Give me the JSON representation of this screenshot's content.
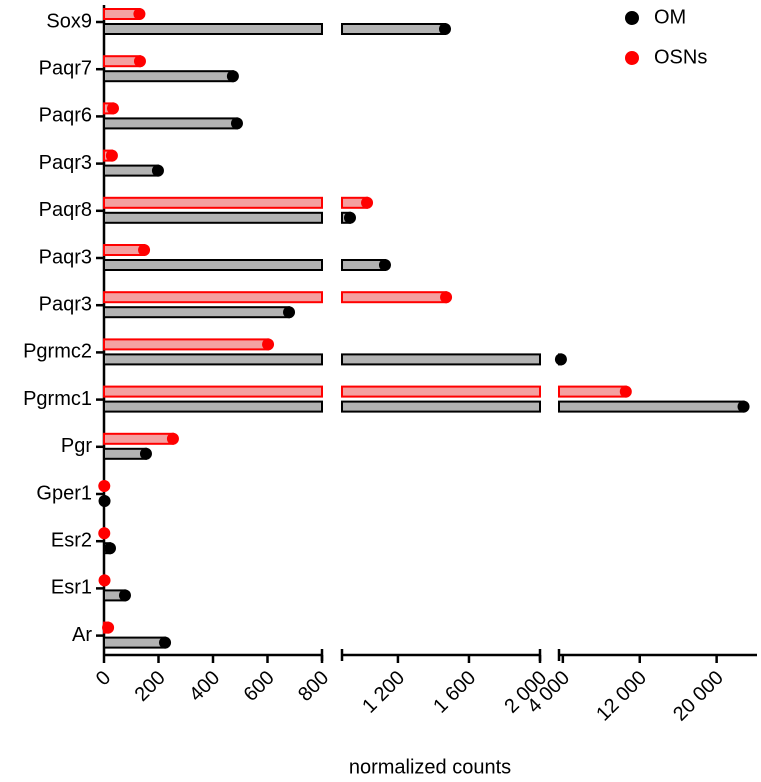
{
  "chart_data": {
    "type": "broken-axis-hbar",
    "x_label": "normalized counts",
    "categories": [
      "Sox9",
      "Paqr7",
      "Paqr6",
      "Paqr3",
      "Paqr8",
      "Paqr3",
      "Paqr3",
      "Pgrmc2",
      "Pgrmc1",
      "Pgr",
      "Gper1",
      "Esr2",
      "Esr1",
      "Ar"
    ],
    "series": [
      {
        "name": "OM",
        "color": "#000000",
        "bar_color": "#b3b3b3",
        "values": [
          1465,
          473,
          488,
          198,
          930,
          1127,
          679,
          3800,
          22800,
          154,
          2,
          22,
          77,
          224
        ]
      },
      {
        "name": "OSNs",
        "color": "#ff0000",
        "bar_color": "#f4a0a0",
        "values": [
          130,
          132,
          33,
          29,
          1026,
          147,
          1471,
          602,
          10550,
          253,
          1,
          1,
          2,
          15
        ]
      }
    ],
    "x_segments": [
      {
        "xlim": [
          0,
          800
        ],
        "xticks": [
          0,
          200,
          400,
          600,
          800
        ]
      },
      {
        "xlim": [
          885,
          2000
        ],
        "xticks": [
          {
            "value": 1200,
            "label": "1 200"
          },
          {
            "value": 1600,
            "label": "1 600"
          },
          {
            "value": 2000,
            "label": "2 000"
          }
        ]
      },
      {
        "xlim": [
          3600,
          24200
        ],
        "xticks": [
          {
            "value": 4000,
            "label": "4 000"
          },
          {
            "value": 12000,
            "label": "12 000"
          },
          {
            "value": 20000,
            "label": "20 000"
          }
        ]
      }
    ],
    "legend": "top-right"
  }
}
